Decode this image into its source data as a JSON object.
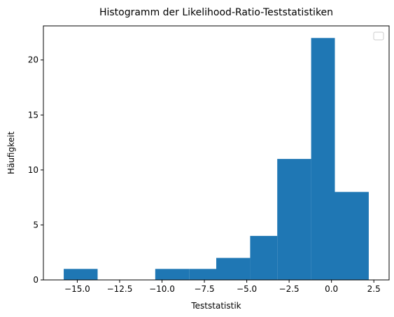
{
  "chart_data": {
    "type": "bar",
    "title": "Histogramm der Likelihood-Ratio-Teststatistiken",
    "xlabel": "Teststatistik",
    "ylabel": "Häufigkeit",
    "bin_edges": [
      -15.8,
      -13.8,
      -11.8,
      -10.4,
      -8.4,
      -6.8,
      -4.8,
      -3.2,
      -1.2,
      0.2,
      2.2
    ],
    "values": [
      1,
      0,
      0,
      1,
      1,
      2,
      4,
      11,
      22,
      8
    ],
    "xlim": [
      -17.0,
      3.4
    ],
    "ylim": [
      0,
      23.1
    ],
    "xticks": [
      -15.0,
      -12.5,
      -10.0,
      -7.5,
      -5.0,
      -2.5,
      0.0,
      2.5
    ],
    "xtick_labels": [
      "−15.0",
      "−12.5",
      "−10.0",
      "−7.5",
      "−5.0",
      "−2.5",
      "0.0",
      "2.5"
    ],
    "yticks": [
      0,
      5,
      10,
      15,
      20
    ],
    "ytick_labels": [
      "0",
      "5",
      "10",
      "15",
      "20"
    ],
    "bar_color": "#1f77b4",
    "legend": {
      "position": "top-right",
      "entries": []
    },
    "grid": false
  }
}
